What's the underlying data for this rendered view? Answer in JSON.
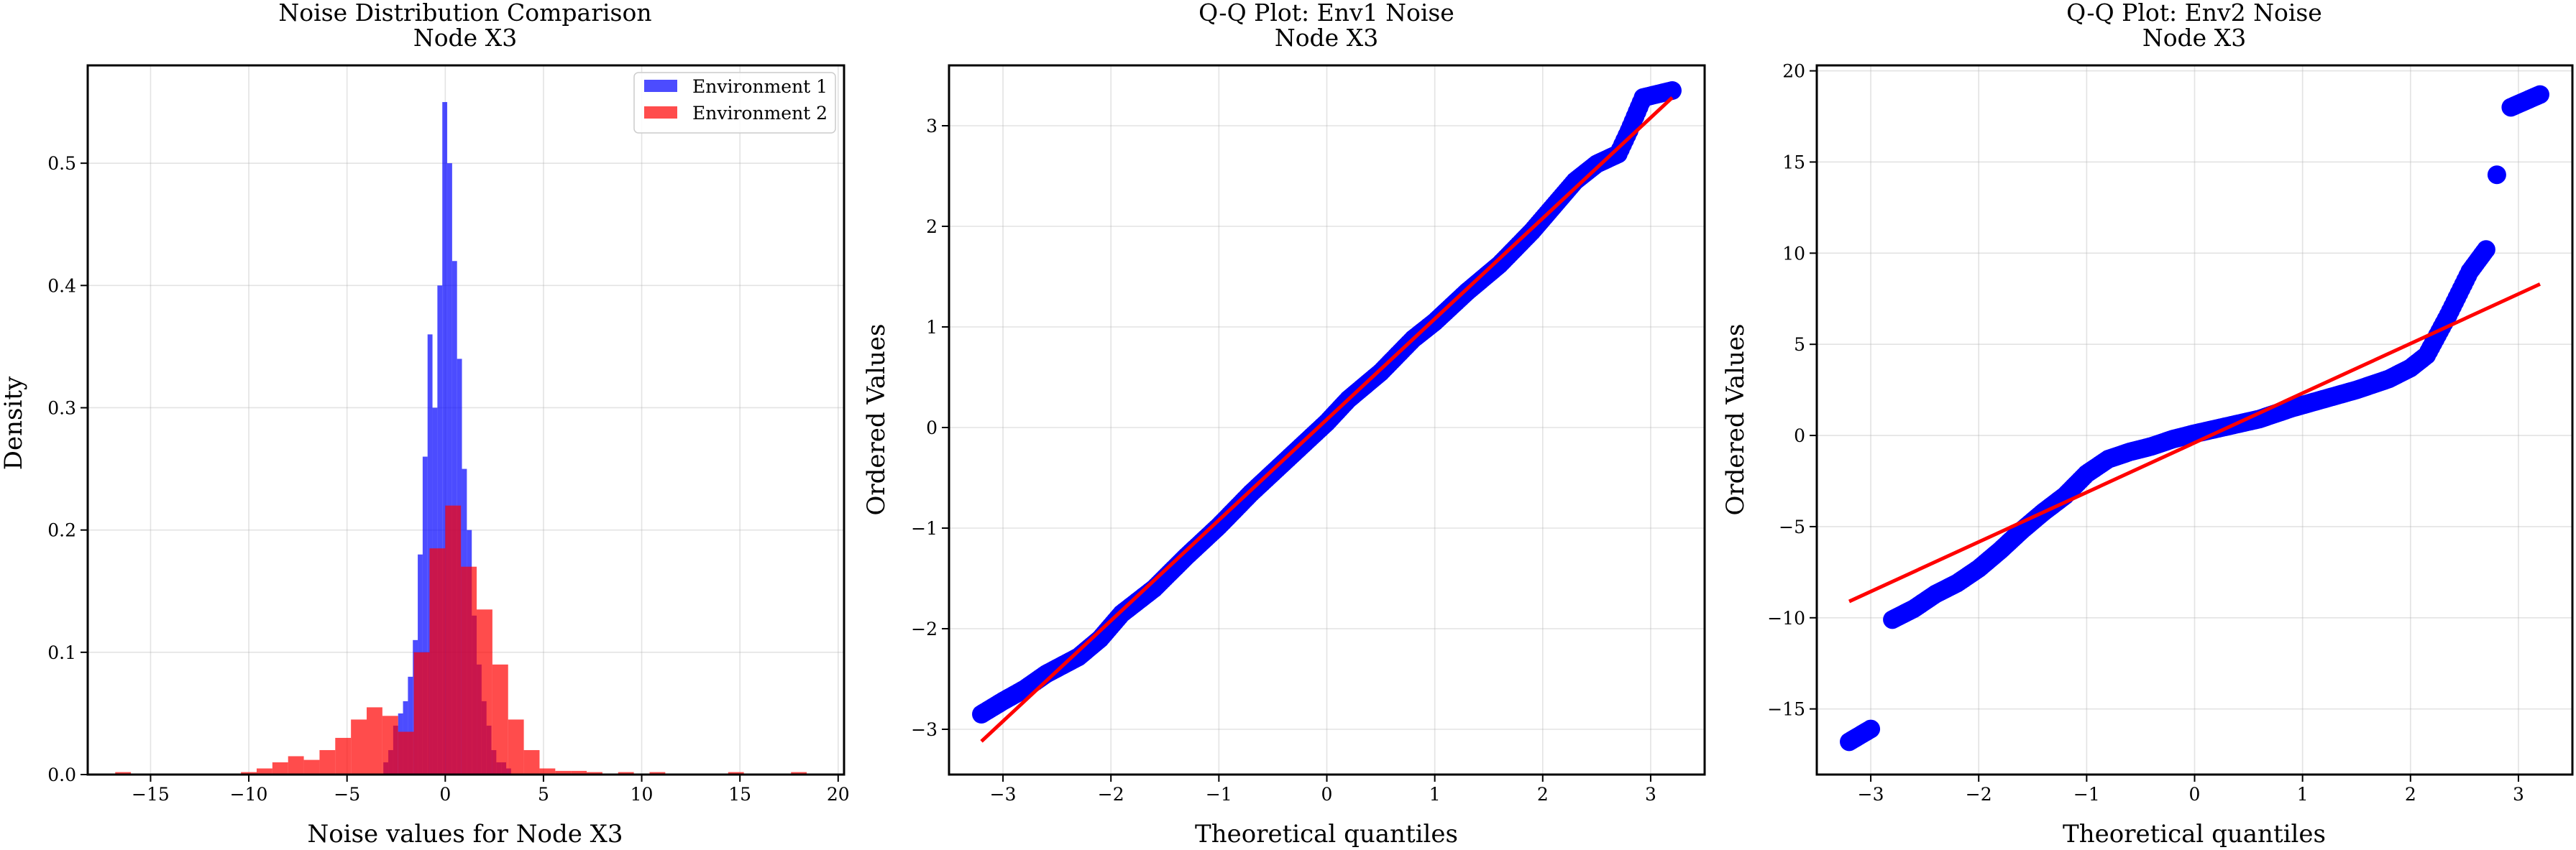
{
  "chart_data": [
    {
      "type": "histogram",
      "title": "Noise Distribution Comparison",
      "subtitle": "Node X3",
      "xlabel": "Noise values for Node X3",
      "ylabel": "Density",
      "xlim": [
        -18.2,
        20.3
      ],
      "ylim": [
        0,
        0.58
      ],
      "xticks": [
        -15,
        -10,
        -5,
        0,
        5,
        10,
        15,
        20
      ],
      "yticks": [
        0.0,
        0.1,
        0.2,
        0.3,
        0.4,
        0.5
      ],
      "grid": true,
      "legend_position": "top-right",
      "series": [
        {
          "name": "Environment 1",
          "color": "#0000ff",
          "bin_edges": [
            -3.15,
            -2.9,
            -2.65,
            -2.4,
            -2.15,
            -1.9,
            -1.65,
            -1.4,
            -1.15,
            -0.9,
            -0.65,
            -0.4,
            -0.15,
            0.1,
            0.35,
            0.6,
            0.85,
            1.1,
            1.35,
            1.6,
            1.85,
            2.1,
            2.35,
            2.6,
            2.85,
            3.1,
            3.35
          ],
          "density": [
            0.01,
            0.02,
            0.04,
            0.05,
            0.06,
            0.08,
            0.11,
            0.18,
            0.26,
            0.36,
            0.3,
            0.4,
            0.55,
            0.5,
            0.42,
            0.34,
            0.25,
            0.2,
            0.13,
            0.09,
            0.06,
            0.04,
            0.02,
            0.01,
            0.01,
            0.005
          ]
        },
        {
          "name": "Environment 2",
          "color": "#ff0000",
          "bin_edges": [
            -16.8,
            -16.0,
            -15.2,
            -14.4,
            -13.6,
            -12.8,
            -12.0,
            -11.2,
            -10.4,
            -9.6,
            -8.8,
            -8.0,
            -7.2,
            -6.4,
            -5.6,
            -4.8,
            -4.0,
            -3.2,
            -2.4,
            -1.6,
            -0.8,
            0.0,
            0.8,
            1.6,
            2.4,
            3.2,
            4.0,
            4.8,
            5.6,
            6.4,
            7.2,
            8.0,
            8.8,
            9.6,
            10.4,
            11.2,
            12.0,
            12.8,
            13.6,
            14.4,
            15.2,
            16.0,
            16.8,
            17.6,
            18.4
          ],
          "density": [
            0.002,
            0.0,
            0.0,
            0.0,
            0.0,
            0.0,
            0.0,
            0.0,
            0.002,
            0.005,
            0.01,
            0.015,
            0.012,
            0.02,
            0.03,
            0.045,
            0.055,
            0.048,
            0.035,
            0.1,
            0.185,
            0.22,
            0.17,
            0.135,
            0.09,
            0.045,
            0.02,
            0.005,
            0.003,
            0.003,
            0.002,
            0.0,
            0.002,
            0.0,
            0.002,
            0.0,
            0.0,
            0.0,
            0.0,
            0.002,
            0.0,
            0.0,
            0.0,
            0.002
          ]
        }
      ]
    },
    {
      "type": "scatter",
      "title": "Q-Q Plot: Env1 Noise",
      "subtitle": "Node X3",
      "xlabel": "Theoretical quantiles",
      "ylabel": "Ordered Values",
      "xlim": [
        -3.5,
        3.5
      ],
      "ylim": [
        -3.45,
        3.6
      ],
      "xticks": [
        -3,
        -2,
        -1,
        0,
        1,
        2,
        3
      ],
      "yticks": [
        -3,
        -2,
        -1,
        0,
        1,
        2,
        3
      ],
      "grid": true,
      "points_color": "#0000ff",
      "line_color": "#ff0000",
      "fit_line": {
        "slope": 1.0,
        "intercept": 0.08
      },
      "curve": [
        [
          -3.2,
          -2.85
        ],
        [
          -3.0,
          -2.72
        ],
        [
          -2.8,
          -2.6
        ],
        [
          -2.6,
          -2.45
        ],
        [
          -2.3,
          -2.28
        ],
        [
          -2.1,
          -2.1
        ],
        [
          -1.9,
          -1.85
        ],
        [
          -1.6,
          -1.6
        ],
        [
          -1.3,
          -1.28
        ],
        [
          -1.0,
          -0.98
        ],
        [
          -0.7,
          -0.65
        ],
        [
          -0.4,
          -0.35
        ],
        [
          -0.1,
          -0.05
        ],
        [
          0.0,
          0.05
        ],
        [
          0.2,
          0.28
        ],
        [
          0.5,
          0.55
        ],
        [
          0.8,
          0.88
        ],
        [
          1.0,
          1.05
        ],
        [
          1.3,
          1.35
        ],
        [
          1.6,
          1.62
        ],
        [
          1.9,
          1.95
        ],
        [
          2.1,
          2.2
        ],
        [
          2.3,
          2.45
        ],
        [
          2.5,
          2.62
        ],
        [
          2.7,
          2.72
        ],
        [
          2.8,
          2.95
        ],
        [
          2.93,
          3.28
        ],
        [
          3.2,
          3.35
        ]
      ]
    },
    {
      "type": "scatter",
      "title": "Q-Q Plot: Env2 Noise",
      "subtitle": "Node X3",
      "xlabel": "Theoretical quantiles",
      "ylabel": "Ordered Values",
      "xlim": [
        -3.5,
        3.5
      ],
      "ylim": [
        -18.6,
        20.3
      ],
      "xticks": [
        -3,
        -2,
        -1,
        0,
        1,
        2,
        3
      ],
      "yticks": [
        -15,
        -10,
        -5,
        0,
        5,
        10,
        15,
        20
      ],
      "grid": true,
      "points_color": "#0000ff",
      "line_color": "#ff0000",
      "fit_line": {
        "slope": 2.72,
        "intercept": -0.4
      },
      "curve": [
        [
          -3.2,
          -16.8
        ],
        [
          -3.0,
          -16.1
        ],
        [
          -2.8,
          -10.1
        ],
        [
          -2.6,
          -9.5
        ],
        [
          -2.4,
          -8.7
        ],
        [
          -2.2,
          -8.1
        ],
        [
          -2.0,
          -7.3
        ],
        [
          -1.8,
          -6.3
        ],
        [
          -1.6,
          -5.2
        ],
        [
          -1.4,
          -4.2
        ],
        [
          -1.2,
          -3.3
        ],
        [
          -1.0,
          -2.1
        ],
        [
          -0.8,
          -1.3
        ],
        [
          -0.6,
          -0.9
        ],
        [
          -0.4,
          -0.6
        ],
        [
          -0.2,
          -0.2
        ],
        [
          0.0,
          0.1
        ],
        [
          0.3,
          0.5
        ],
        [
          0.6,
          0.9
        ],
        [
          0.9,
          1.5
        ],
        [
          1.2,
          2.0
        ],
        [
          1.5,
          2.5
        ],
        [
          1.8,
          3.1
        ],
        [
          2.0,
          3.7
        ],
        [
          2.15,
          4.4
        ],
        [
          2.25,
          5.5
        ],
        [
          2.35,
          6.6
        ],
        [
          2.45,
          7.8
        ],
        [
          2.55,
          9.0
        ],
        [
          2.7,
          10.2
        ],
        [
          2.8,
          14.3
        ],
        [
          2.93,
          18.0
        ],
        [
          3.2,
          18.7
        ]
      ]
    }
  ]
}
